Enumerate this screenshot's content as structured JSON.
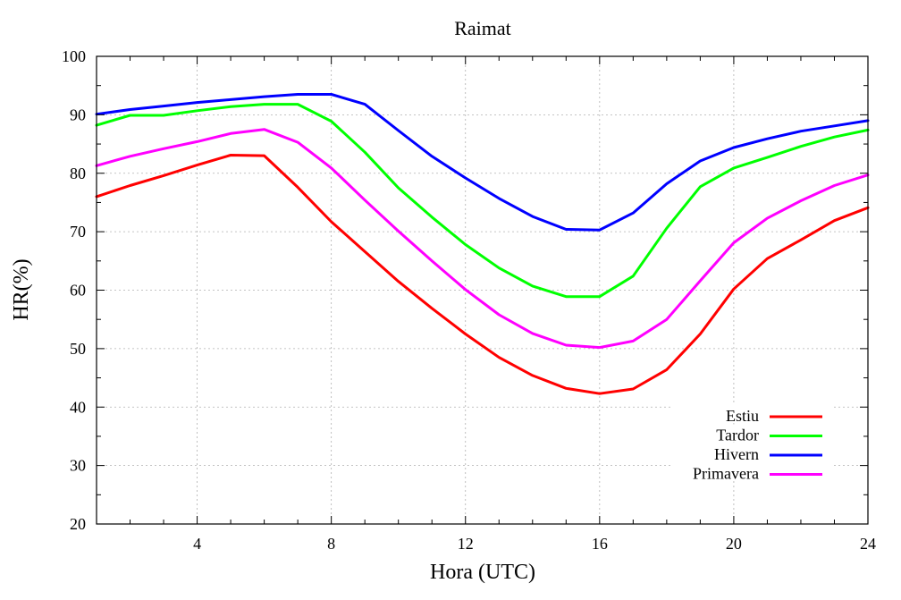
{
  "chart_data": {
    "type": "line",
    "title": "Raimat",
    "xlabel": "Hora (UTC)",
    "ylabel": "HR(%)",
    "xlim": [
      1,
      24
    ],
    "ylim": [
      20,
      100
    ],
    "x_ticks": [
      "4",
      "8",
      "12",
      "16",
      "20",
      "24"
    ],
    "y_ticks": [
      "20",
      "30",
      "40",
      "50",
      "60",
      "70",
      "80",
      "90",
      "100"
    ],
    "grid": true,
    "legend_position": "bottom-right",
    "x": [
      1,
      2,
      3,
      4,
      5,
      6,
      7,
      8,
      9,
      10,
      11,
      12,
      13,
      14,
      15,
      16,
      17,
      18,
      19,
      20,
      21,
      22,
      23,
      24
    ],
    "series": [
      {
        "name": "Estiu",
        "color": "#ff0000",
        "values": [
          76.0,
          77.9,
          79.6,
          81.4,
          83.1,
          83.0,
          77.6,
          71.7,
          66.6,
          61.5,
          56.9,
          52.5,
          48.5,
          45.4,
          43.2,
          42.3,
          43.1,
          46.4,
          52.5,
          60.2,
          65.4,
          68.6,
          71.9,
          74.1
        ]
      },
      {
        "name": "Tardor",
        "color": "#00ff00",
        "values": [
          88.2,
          89.9,
          89.9,
          90.7,
          91.4,
          91.8,
          91.8,
          88.9,
          83.6,
          77.5,
          72.5,
          67.8,
          63.8,
          60.7,
          58.9,
          58.9,
          62.4,
          70.6,
          77.7,
          80.9,
          82.7,
          84.6,
          86.2,
          87.4
        ]
      },
      {
        "name": "Hivern",
        "color": "#0000ff",
        "values": [
          90.1,
          90.9,
          91.5,
          92.1,
          92.6,
          93.1,
          93.5,
          93.5,
          91.8,
          87.3,
          82.9,
          79.2,
          75.7,
          72.6,
          70.4,
          70.3,
          73.2,
          78.2,
          82.1,
          84.4,
          85.9,
          87.2,
          88.1,
          89.0
        ]
      },
      {
        "name": "Primavera",
        "color": "#ff00ff",
        "values": [
          81.3,
          82.9,
          84.2,
          85.4,
          86.8,
          87.5,
          85.3,
          80.9,
          75.4,
          70.1,
          65.0,
          60.1,
          55.8,
          52.6,
          50.6,
          50.2,
          51.3,
          55.0,
          61.6,
          68.1,
          72.3,
          75.3,
          77.9,
          79.7
        ]
      }
    ]
  }
}
